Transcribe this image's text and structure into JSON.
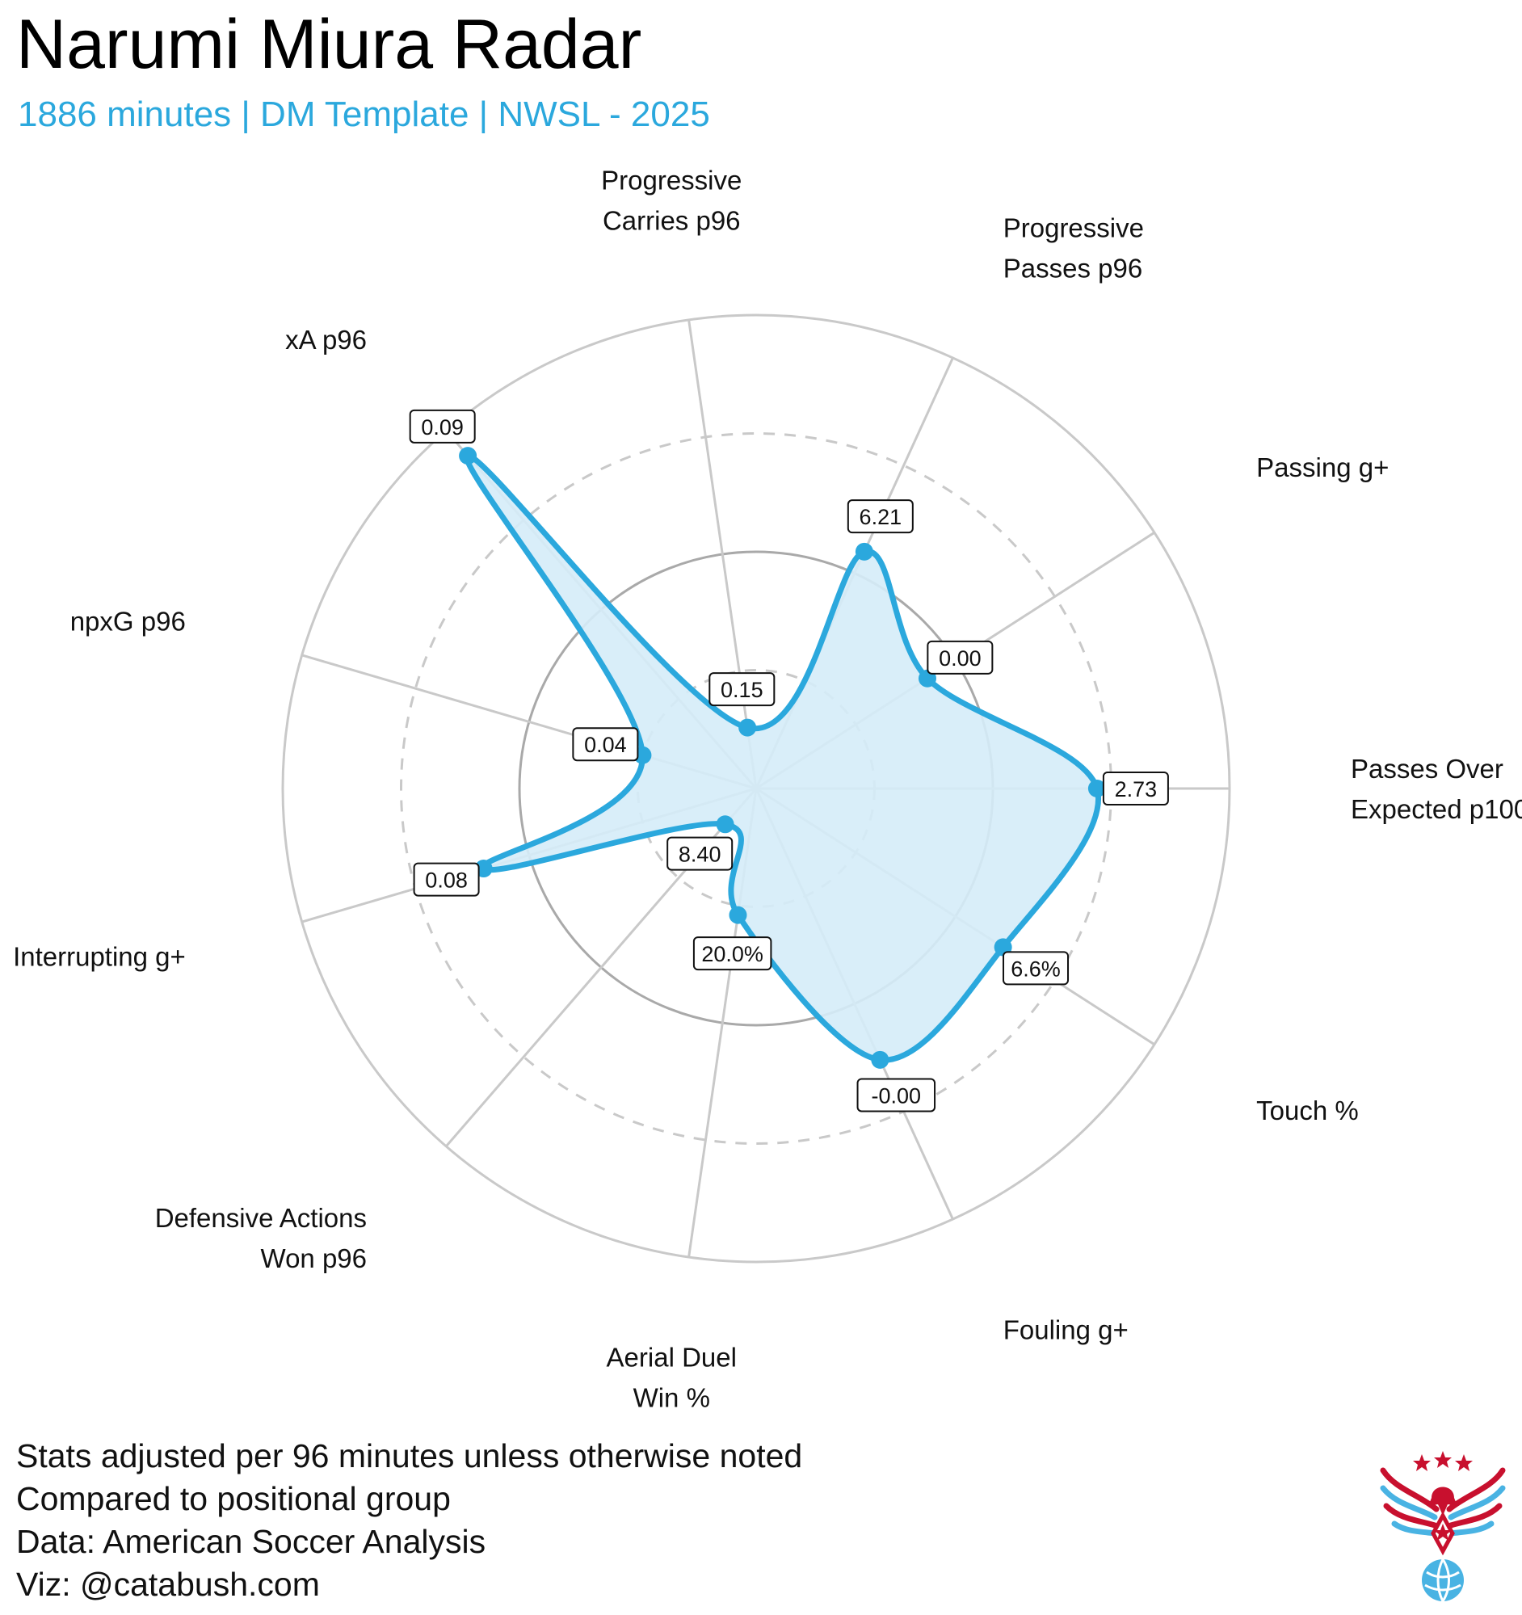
{
  "title": "Narumi Miura Radar",
  "subtitle": "1886 minutes | DM Template | NWSL - 2025",
  "footer": [
    "Stats adjusted per 96 minutes unless otherwise noted",
    "Compared to positional group",
    "Data: American Soccer Analysis",
    "Viz: @catabush.com"
  ],
  "colors": {
    "accent": "#2ba8dd",
    "fill": "#d5ecf8",
    "grid": "#c9c9c9",
    "grid_mid": "#a9a9a9",
    "logo_red": "#c8102e",
    "logo_blue": "#49b3e3"
  },
  "logo": {
    "icon": "eagle-soccer-ball-logo"
  },
  "chart_data": {
    "type": "radar",
    "scale": "percentile",
    "rings": [
      25,
      50,
      75,
      100
    ],
    "axes": [
      {
        "label": [
          "Passes Over",
          "Expected p100"
        ],
        "value": "2.73",
        "percentile": 72
      },
      {
        "label": [
          "Passing g+"
        ],
        "value": "0.00",
        "percentile": 43
      },
      {
        "label": [
          "Progressive",
          "Passes p96"
        ],
        "value": "6.21",
        "percentile": 55
      },
      {
        "label": [
          "Progressive",
          "Carries p96"
        ],
        "value": "0.15",
        "percentile": 13
      },
      {
        "label": [
          "xA p96"
        ],
        "value": "0.09",
        "percentile": 93
      },
      {
        "label": [
          "npxG p96"
        ],
        "value": "0.04",
        "percentile": 25
      },
      {
        "label": [
          "Interrupting g+"
        ],
        "value": "0.08",
        "percentile": 60
      },
      {
        "label": [
          "Defensive Actions",
          "Won p96"
        ],
        "value": "8.40",
        "percentile": 10
      },
      {
        "label": [
          "Aerial Duel",
          "Win %"
        ],
        "value": "20.0%",
        "percentile": 27
      },
      {
        "label": [
          "Fouling g+"
        ],
        "value": "-0.00",
        "percentile": 63
      },
      {
        "label": [
          "Touch %"
        ],
        "value": "6.6%",
        "percentile": 62
      }
    ]
  }
}
